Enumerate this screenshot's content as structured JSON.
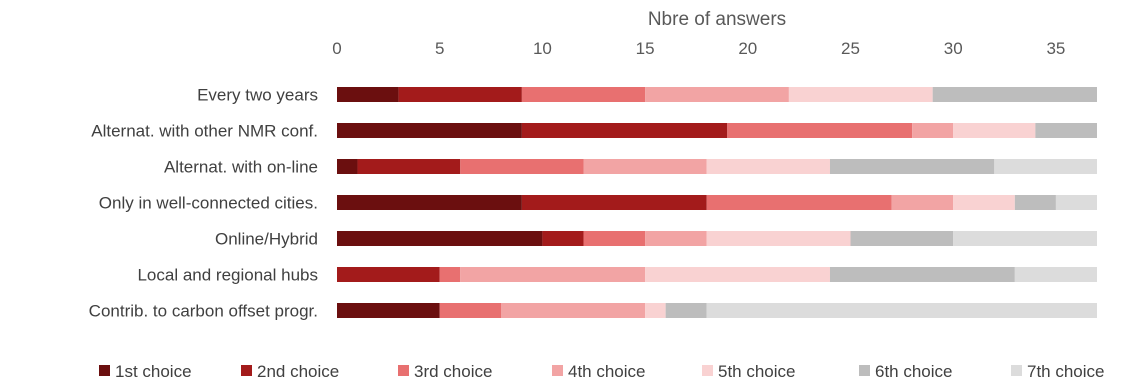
{
  "chart_data": {
    "type": "bar",
    "orientation": "horizontal",
    "stacked": true,
    "title": "",
    "xlabel": "Nbre of answers",
    "xaxis_position": "top",
    "xlim": [
      0,
      37
    ],
    "xticks": [
      0,
      5,
      10,
      15,
      20,
      25,
      30,
      35
    ],
    "grid": false,
    "legend_position": "bottom",
    "categories": [
      "Every two years",
      "Alternat. with other NMR conf.",
      "Alternat. with on-line",
      "Only in well-connected cities.",
      "Online/Hybrid",
      "Local and regional hubs",
      "Contrib. to carbon offset progr."
    ],
    "series": [
      {
        "name": "1st choice",
        "color": "#6b0f0f",
        "values": [
          3,
          9,
          1,
          9,
          10,
          0,
          5
        ]
      },
      {
        "name": "2nd choice",
        "color": "#a31b1b",
        "values": [
          6,
          10,
          5,
          9,
          2,
          5,
          0
        ]
      },
      {
        "name": "3rd choice",
        "color": "#e87070",
        "values": [
          6,
          9,
          6,
          9,
          3,
          1,
          3
        ]
      },
      {
        "name": "4th choice",
        "color": "#f2a4a4",
        "values": [
          7,
          2,
          6,
          3,
          3,
          9,
          7
        ]
      },
      {
        "name": "5th choice",
        "color": "#f9d2d2",
        "values": [
          7,
          4,
          6,
          3,
          7,
          9,
          1
        ]
      },
      {
        "name": "6th choice",
        "color": "#bdbdbd",
        "values": [
          8,
          3,
          8,
          2,
          5,
          9,
          2
        ]
      },
      {
        "name": "7th choice",
        "color": "#dcdcdc",
        "values": [
          0,
          0,
          5,
          2,
          7,
          4,
          19
        ]
      }
    ]
  }
}
